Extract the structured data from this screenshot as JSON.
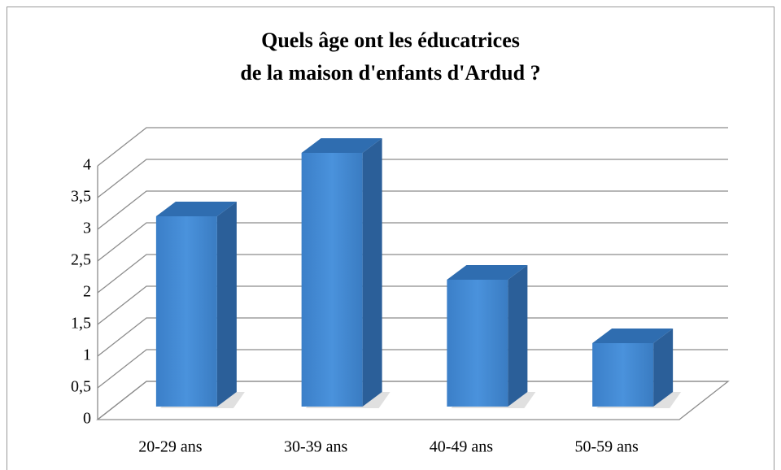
{
  "chart_data": {
    "type": "bar3d",
    "title": [
      "Quels âge ont les éducatrices",
      "de la maison d'enfants d'Ardud ?"
    ],
    "categories": [
      "20-29 ans",
      "30-39 ans",
      "40-49 ans",
      "50-59 ans"
    ],
    "values": [
      3,
      4,
      2,
      1
    ],
    "color": "#3a86d2",
    "ylim": [
      0,
      4
    ],
    "yticks": [
      0,
      {
        "value": 0.5,
        "label": "0,5"
      },
      1,
      {
        "value": 1.5,
        "label": "1,5"
      },
      2,
      {
        "value": 2.5,
        "label": "2,5"
      },
      3,
      {
        "value": 3.5,
        "label": "3,5"
      },
      4
    ],
    "grid": true
  }
}
